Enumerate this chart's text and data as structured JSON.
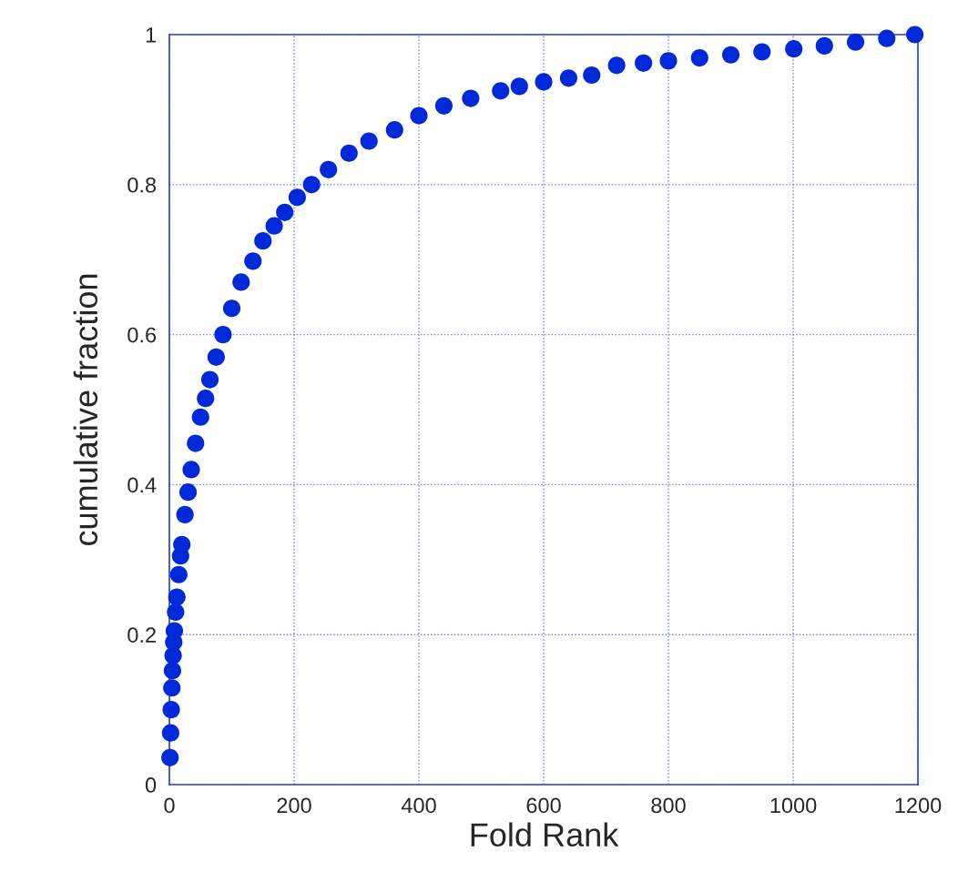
{
  "chart_data": {
    "type": "scatter",
    "xlabel": "Fold Rank",
    "ylabel": "cumulative fraction",
    "xlim": [
      0,
      1200
    ],
    "xticks": [
      0,
      200,
      400,
      600,
      800,
      1000,
      1200
    ],
    "ylim": [
      0,
      1
    ],
    "yticks": [
      0,
      0.2,
      0.4,
      0.6,
      0.8,
      1
    ],
    "grid": true,
    "marker": "circle",
    "series": [
      {
        "color": "#0029d9",
        "x": [
          1,
          2,
          3,
          4,
          5,
          6,
          7,
          8,
          10,
          12,
          15,
          18,
          20,
          25,
          30,
          35,
          42,
          50,
          58,
          65,
          75,
          86,
          100,
          115,
          134,
          150,
          168,
          185,
          205,
          228,
          255,
          288,
          320,
          361,
          400,
          440,
          483,
          531,
          561,
          600,
          640,
          677,
          717,
          760,
          800,
          850,
          900,
          950,
          1001,
          1050,
          1100,
          1150,
          1195
        ],
        "values": [
          0.036,
          0.069,
          0.1,
          0.129,
          0.152,
          0.172,
          0.19,
          0.205,
          0.23,
          0.25,
          0.28,
          0.305,
          0.32,
          0.36,
          0.39,
          0.42,
          0.455,
          0.49,
          0.515,
          0.54,
          0.57,
          0.6,
          0.635,
          0.67,
          0.698,
          0.725,
          0.745,
          0.763,
          0.783,
          0.8,
          0.82,
          0.842,
          0.858,
          0.873,
          0.892,
          0.905,
          0.915,
          0.925,
          0.931,
          0.937,
          0.942,
          0.946,
          0.959,
          0.962,
          0.965,
          0.969,
          0.973,
          0.977,
          0.981,
          0.985,
          0.99,
          0.995,
          1.0
        ]
      }
    ]
  }
}
